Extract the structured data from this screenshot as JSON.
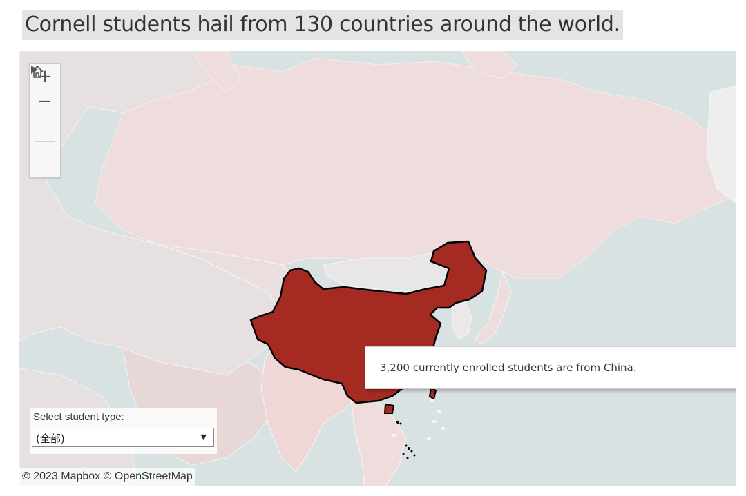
{
  "title": "Cornell students hail from 130 countries around the world.",
  "map": {
    "highlighted_country": "China",
    "colors": {
      "water": "#d8e2e3",
      "land": "#eedcdc",
      "land_dim": "#e4e0df",
      "highlight": "#a52a22",
      "highlight_stroke": "#000000"
    },
    "controls": {
      "zoom_in_icon": "plus-icon",
      "zoom_out_icon": "minus-icon",
      "home_icon": "home-icon",
      "expand_icon": "play-icon"
    },
    "tooltip": "3,200 currently enrolled students are from China.",
    "filter": {
      "label": "Select student type:",
      "value": "(全部)"
    },
    "attribution": "© 2023 Mapbox  © OpenStreetMap"
  }
}
